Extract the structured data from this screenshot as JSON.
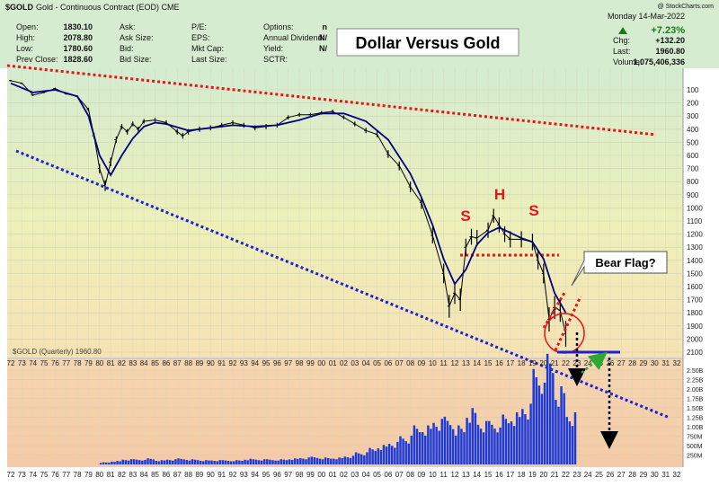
{
  "header": {
    "symbol": "$GOLD",
    "description": "Gold - Continuous Contract (EOD) CME",
    "date": "Monday 14-Mar-2022",
    "copyright": "@ StockCharts.com",
    "stats_left": [
      {
        "label": "Open:",
        "value": "1830.10"
      },
      {
        "label": "High:",
        "value": "2078.80"
      },
      {
        "label": "Low:",
        "value": "1780.60"
      },
      {
        "label": "Prev Close:",
        "value": "1828.60"
      }
    ],
    "stats_mid": [
      "Ask:",
      "Ask Size:",
      "Bid:",
      "Bid Size:"
    ],
    "stats_mid2": [
      "P/E:",
      "EPS:",
      "Mkt Cap:",
      "Last Size:"
    ],
    "stats_mid3": [
      {
        "label": "Options:",
        "value": "n"
      },
      {
        "label": "Annual Dividend:",
        "value": "N/"
      },
      {
        "label": "Yield:",
        "value": "N/"
      },
      {
        "label": "SCTR:",
        "value": ""
      }
    ],
    "stats_right": [
      {
        "label": "Chg:",
        "value": "+132.20"
      },
      {
        "label": "Last:",
        "value": "1960.80"
      },
      {
        "label": "Volume:",
        "value": "1,075,406,336"
      }
    ],
    "change_pct": "+7.23%"
  },
  "colors": {
    "up": "#1a7a1a",
    "price": "#000000",
    "ma": "#000080",
    "red_line": "#e8141b",
    "blue_line": "#1f1fd6",
    "volume": "#1e3ad8",
    "flag_line": "#3a8fd6"
  },
  "chart_data": {
    "type": "line",
    "legend": "$GOLD (Quarterly) 1960.80",
    "price_axis": {
      "inverted": true,
      "ticks": [
        "100",
        "200",
        "300",
        "400",
        "500",
        "600",
        "700",
        "800",
        "900",
        "1000",
        "1100",
        "1200",
        "1300",
        "1400",
        "1500",
        "1600",
        "1700",
        "1800",
        "1900",
        "2000",
        "2100"
      ]
    },
    "volume_axis": {
      "ticks": [
        "2.50B",
        "2.25B",
        "2.00B",
        "1.75B",
        "1.50B",
        "1.25B",
        "1.00B",
        "750M",
        "500M",
        "250M"
      ]
    },
    "x_ticks": [
      "72",
      "73",
      "74",
      "75",
      "76",
      "77",
      "78",
      "79",
      "80",
      "81",
      "82",
      "83",
      "84",
      "85",
      "86",
      "87",
      "88",
      "89",
      "90",
      "91",
      "92",
      "93",
      "94",
      "95",
      "96",
      "97",
      "98",
      "99",
      "00",
      "01",
      "02",
      "03",
      "04",
      "05",
      "06",
      "07",
      "08",
      "09",
      "10",
      "11",
      "12",
      "13",
      "14",
      "15",
      "16",
      "17",
      "18",
      "19",
      "20",
      "21",
      "22",
      "23",
      "24",
      "25",
      "26",
      "27",
      "28",
      "29",
      "30",
      "31",
      "32"
    ],
    "series": [
      {
        "kind": "price",
        "x": [
          1972,
          1973,
          1974,
          1975,
          1976,
          1977,
          1978,
          1979,
          1979.5,
          1980,
          1980.5,
          1981,
          1981.5,
          1982,
          1982.5,
          1983,
          1983.5,
          1984,
          1985,
          1986,
          1987,
          1987.5,
          1988,
          1989,
          1990,
          1991,
          1992,
          1993,
          1994,
          1995,
          1996,
          1997,
          1998,
          1999,
          2000,
          2001,
          2002,
          2003,
          2004,
          2005,
          2006,
          2007,
          2008,
          2009,
          2010,
          2011,
          2011.5,
          2012,
          2012.5,
          2013,
          2013.5,
          2014,
          2015,
          2015.5,
          2016,
          2016.5,
          2017,
          2018,
          2019,
          2019.5,
          2020,
          2020.5,
          2021,
          2021.5,
          2022
        ],
        "values": [
          30,
          50,
          140,
          120,
          90,
          130,
          150,
          250,
          450,
          700,
          830,
          650,
          480,
          380,
          420,
          360,
          400,
          340,
          330,
          350,
          420,
          450,
          420,
          400,
          390,
          370,
          350,
          370,
          390,
          380,
          370,
          310,
          290,
          290,
          275,
          265,
          310,
          360,
          410,
          440,
          590,
          680,
          840,
          960,
          1210,
          1500,
          1750,
          1650,
          1700,
          1300,
          1220,
          1230,
          1170,
          1060,
          1130,
          1200,
          1240,
          1240,
          1260,
          1400,
          1500,
          1850,
          1760,
          1780,
          1960
        ]
      },
      {
        "kind": "moving-average",
        "x": [
          1972,
          1974,
          1976,
          1978,
          1979,
          1980,
          1981,
          1982,
          1983,
          1984,
          1985,
          1986,
          1988,
          1990,
          1992,
          1994,
          1996,
          1998,
          2000,
          2002,
          2004,
          2006,
          2008,
          2009,
          2010,
          2011,
          2012,
          2013,
          2014,
          2015,
          2016,
          2017,
          2018,
          2019,
          2020,
          2021,
          2022
        ],
        "values": [
          50,
          120,
          100,
          150,
          300,
          600,
          750,
          600,
          470,
          380,
          350,
          360,
          410,
          390,
          370,
          380,
          370,
          330,
          280,
          280,
          340,
          480,
          740,
          920,
          1130,
          1390,
          1580,
          1470,
          1280,
          1190,
          1150,
          1190,
          1230,
          1260,
          1390,
          1650,
          1800
        ]
      },
      {
        "kind": "volume",
        "x": [
          1980,
          1981,
          1982,
          1983,
          1984,
          1985,
          1986,
          1987,
          1988,
          1989,
          1990,
          1991,
          1992,
          1993,
          1994,
          1995,
          1996,
          1997,
          1998,
          1999,
          2000,
          2001,
          2002,
          2003,
          2004,
          2005,
          2006,
          2007,
          2008,
          2009,
          2010,
          2011,
          2012,
          2013,
          2014,
          2015,
          2016,
          2017,
          2018,
          2019,
          2020,
          2021,
          2022
        ],
        "values": [
          0.05,
          0.08,
          0.12,
          0.12,
          0.14,
          0.1,
          0.12,
          0.14,
          0.12,
          0.1,
          0.1,
          0.1,
          0.1,
          0.13,
          0.12,
          0.12,
          0.12,
          0.14,
          0.16,
          0.18,
          0.16,
          0.16,
          0.2,
          0.28,
          0.38,
          0.45,
          0.52,
          0.65,
          0.9,
          0.9,
          1.05,
          1.1,
          0.9,
          1.3,
          1.0,
          1.0,
          1.15,
          1.2,
          1.4,
          2.2,
          2.55,
          1.8,
          1.2
        ]
      }
    ],
    "annotations": {
      "title": "Dollar Versus Gold",
      "bear_flag": "Bear Flag?",
      "hs_left": "S",
      "hs_head": "H",
      "hs_right": "S"
    }
  }
}
